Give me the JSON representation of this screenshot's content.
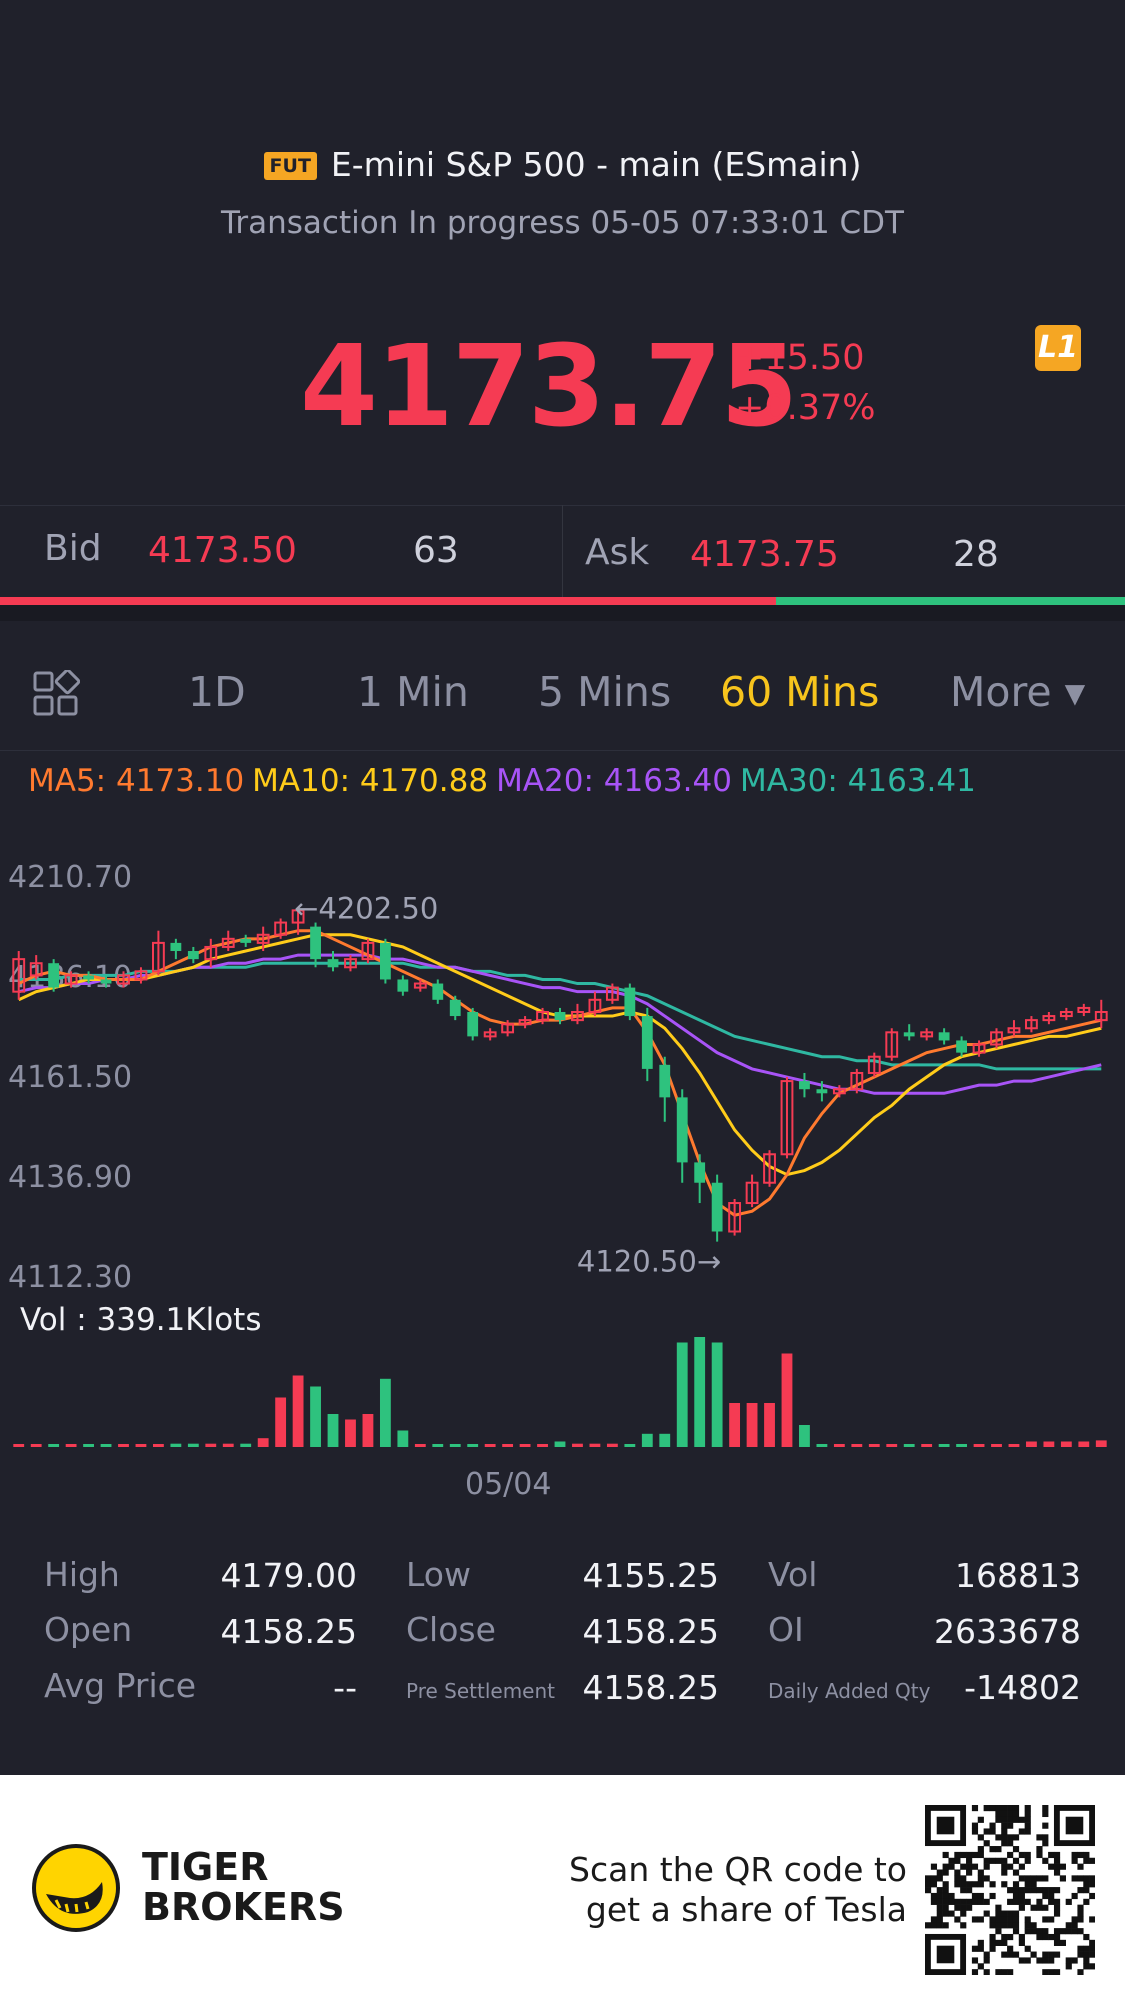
{
  "header": {
    "badge": "FUT",
    "title": "E-mini S&P 500 - main (ESmain)",
    "status": "Transaction In progress 05-05 07:33:01 CDT"
  },
  "quote": {
    "price": "4173.75",
    "change": "+15.50",
    "change_pct": "+0.37%",
    "level_badge": "L1"
  },
  "bidask": {
    "bid_label": "Bid",
    "bid_price": "4173.50",
    "bid_size": "63",
    "ask_label": "Ask",
    "ask_price": "4173.75",
    "ask_size": "28",
    "bid_ratio": 0.69
  },
  "tabs": [
    {
      "label": "1D",
      "active": false
    },
    {
      "label": "1 Min",
      "active": false
    },
    {
      "label": "5 Mins",
      "active": false
    },
    {
      "label": "60 Mins",
      "active": true
    },
    {
      "label": "More ▾",
      "active": false
    }
  ],
  "ma": {
    "ma5": "MA5: 4173.10",
    "ma10": "MA10: 4170.88",
    "ma20": "MA20: 4163.40",
    "ma30": "MA30: 4163.41"
  },
  "chart_data": {
    "type": "candlestick",
    "y_ticks": [
      "4210.70",
      "4186.10",
      "4161.50",
      "4136.90",
      "4112.30"
    ],
    "ylim": [
      4112.3,
      4210.7
    ],
    "high_marker": "←4202.50",
    "low_marker": "4120.50→",
    "vol_label": "Vol  : 339.1Klots",
    "x_label": "05/04",
    "colors": {
      "up": "#f53b53",
      "down": "#2ec27e",
      "ma5": "#ff7a2f",
      "ma10": "#ffcc1a",
      "ma20": "#a854f7",
      "ma30": "#2fb8a2"
    },
    "candles": [
      [
        4182,
        4190,
        4180,
        4192
      ],
      [
        4186,
        4189,
        4185,
        4191
      ],
      [
        4189,
        4183,
        4182,
        4190
      ],
      [
        4184,
        4186,
        4183,
        4187
      ],
      [
        4186,
        4185,
        4184,
        4187
      ],
      [
        4185,
        4184,
        4183,
        4186
      ],
      [
        4184,
        4186,
        4183,
        4187
      ],
      [
        4185,
        4187,
        4184,
        4188
      ],
      [
        4187,
        4194,
        4186,
        4197
      ],
      [
        4194,
        4192,
        4190,
        4195
      ],
      [
        4192,
        4190,
        4189,
        4193
      ],
      [
        4190,
        4193,
        4188,
        4195
      ],
      [
        4193,
        4195,
        4192,
        4197
      ],
      [
        4195,
        4194,
        4193,
        4196
      ],
      [
        4194,
        4196,
        4192,
        4198
      ],
      [
        4196,
        4199,
        4195,
        4200
      ],
      [
        4199,
        4202,
        4196,
        4202.5
      ],
      [
        4198,
        4190,
        4188,
        4199
      ],
      [
        4190,
        4188,
        4187,
        4192
      ],
      [
        4188,
        4190,
        4187,
        4191
      ],
      [
        4190,
        4194,
        4189,
        4195
      ],
      [
        4194,
        4185,
        4184,
        4195
      ],
      [
        4185,
        4182,
        4181,
        4186
      ],
      [
        4183,
        4184,
        4182,
        4185
      ],
      [
        4184,
        4180,
        4179,
        4185
      ],
      [
        4180,
        4176,
        4175,
        4181
      ],
      [
        4177,
        4171,
        4170,
        4178
      ],
      [
        4171,
        4172,
        4170,
        4173
      ],
      [
        4172,
        4174,
        4171,
        4175
      ],
      [
        4174,
        4175,
        4173,
        4176
      ],
      [
        4175,
        4177,
        4174,
        4178
      ],
      [
        4177,
        4175,
        4174,
        4178
      ],
      [
        4175,
        4177,
        4174,
        4179
      ],
      [
        4177,
        4180,
        4176,
        4182
      ],
      [
        4180,
        4183,
        4179,
        4184
      ],
      [
        4183,
        4176,
        4175,
        4184
      ],
      [
        4176,
        4163,
        4160,
        4178
      ],
      [
        4164,
        4156,
        4150,
        4166
      ],
      [
        4156,
        4140,
        4135,
        4158
      ],
      [
        4140,
        4135,
        4130,
        4142
      ],
      [
        4135,
        4123,
        4120.5,
        4137
      ],
      [
        4123,
        4130,
        4122,
        4131
      ],
      [
        4130,
        4135,
        4129,
        4137
      ],
      [
        4135,
        4142,
        4134,
        4143
      ],
      [
        4142,
        4160,
        4141,
        4161
      ],
      [
        4160,
        4158,
        4156,
        4162
      ],
      [
        4158,
        4157,
        4155,
        4160
      ],
      [
        4157,
        4158,
        4156,
        4159
      ],
      [
        4158,
        4162,
        4157,
        4163
      ],
      [
        4162,
        4166,
        4161,
        4167
      ],
      [
        4166,
        4172,
        4165,
        4173
      ],
      [
        4172,
        4171,
        4170,
        4174
      ],
      [
        4171,
        4172,
        4170,
        4173
      ],
      [
        4172,
        4170,
        4169,
        4173
      ],
      [
        4170,
        4167,
        4166,
        4171
      ],
      [
        4167,
        4169,
        4166,
        4170
      ],
      [
        4169,
        4172,
        4168,
        4173
      ],
      [
        4172,
        4173,
        4171,
        4175
      ],
      [
        4173,
        4175,
        4172,
        4176
      ],
      [
        4175,
        4176,
        4174,
        4177
      ],
      [
        4176,
        4177,
        4175,
        4178
      ],
      [
        4177,
        4178,
        4176,
        4179
      ],
      [
        4175,
        4177,
        4173,
        4180
      ]
    ],
    "ma5": [
      4184,
      4186,
      4187,
      4186,
      4186,
      4185,
      4185,
      4185,
      4187,
      4189,
      4191,
      4193,
      4194,
      4195,
      4195,
      4196,
      4197,
      4197,
      4195,
      4193,
      4191,
      4189,
      4187,
      4185,
      4183,
      4180,
      4177,
      4175,
      4174,
      4174,
      4175,
      4175,
      4176,
      4177,
      4178,
      4178,
      4172,
      4164,
      4152,
      4140,
      4130,
      4127,
      4128,
      4131,
      4137,
      4146,
      4152,
      4157,
      4159,
      4161,
      4163,
      4165,
      4167,
      4168,
      4169,
      4169,
      4170,
      4171,
      4171,
      4172,
      4173,
      4174,
      4175
    ],
    "ma10": [
      4180,
      4182,
      4183,
      4184,
      4185,
      4185,
      4185,
      4185,
      4186,
      4187,
      4188,
      4190,
      4191,
      4192,
      4193,
      4194,
      4195,
      4196,
      4196,
      4196,
      4195,
      4194,
      4193,
      4191,
      4189,
      4187,
      4185,
      4183,
      4181,
      4179,
      4177,
      4176,
      4176,
      4176,
      4176,
      4177,
      4176,
      4173,
      4168,
      4162,
      4155,
      4148,
      4143,
      4139,
      4137,
      4138,
      4140,
      4143,
      4147,
      4151,
      4154,
      4158,
      4161,
      4164,
      4166,
      4167,
      4168,
      4169,
      4170,
      4171,
      4171,
      4172,
      4173
    ],
    "ma20": [
      4182,
      4183,
      4183,
      4184,
      4184,
      4185,
      4185,
      4186,
      4186,
      4187,
      4188,
      4188,
      4189,
      4189,
      4190,
      4190,
      4191,
      4191,
      4191,
      4191,
      4191,
      4190,
      4190,
      4189,
      4188,
      4188,
      4187,
      4186,
      4185,
      4184,
      4183,
      4183,
      4182,
      4182,
      4182,
      4181,
      4179,
      4176,
      4173,
      4170,
      4167,
      4165,
      4163,
      4162,
      4161,
      4160,
      4159,
      4158,
      4158,
      4157,
      4157,
      4157,
      4157,
      4157,
      4158,
      4159,
      4159,
      4160,
      4160,
      4161,
      4162,
      4163,
      4164
    ],
    "ma30": [
      4185,
      4185,
      4185,
      4186,
      4186,
      4186,
      4186,
      4187,
      4187,
      4187,
      4188,
      4188,
      4188,
      4188,
      4189,
      4189,
      4189,
      4189,
      4189,
      4189,
      4189,
      4189,
      4189,
      4188,
      4188,
      4188,
      4187,
      4187,
      4186,
      4186,
      4185,
      4185,
      4184,
      4184,
      4183,
      4182,
      4181,
      4179,
      4177,
      4175,
      4173,
      4171,
      4170,
      4169,
      4168,
      4167,
      4166,
      4166,
      4165,
      4165,
      4164,
      4164,
      4164,
      4164,
      4164,
      4164,
      4163,
      4163,
      4163,
      4163,
      4163,
      4163,
      4163
    ],
    "volume": [
      2,
      2,
      2,
      2,
      1,
      1,
      1,
      2,
      2,
      3,
      3,
      3,
      3,
      3,
      8,
      45,
      65,
      55,
      30,
      25,
      30,
      62,
      15,
      1,
      1,
      1,
      1,
      1,
      1,
      1,
      1,
      5,
      3,
      3,
      3,
      1,
      12,
      12,
      95,
      100,
      95,
      40,
      40,
      40,
      85,
      20,
      1,
      1,
      1,
      1,
      1,
      1,
      1,
      1,
      1,
      1,
      2,
      2,
      5,
      5,
      5,
      5,
      6
    ]
  },
  "stats": {
    "high_label": "High",
    "high": "4179.00",
    "open_label": "Open",
    "open": "4158.25",
    "avg_label": "Avg Price",
    "avg": "--",
    "low_label": "Low",
    "low": "4155.25",
    "close_label": "Close",
    "close": "4158.25",
    "presettle_label": "Pre Settlement",
    "presettle": "4158.25",
    "vol_label": "Vol",
    "vol": "168813",
    "oi_label": "OI",
    "oi": "2633678",
    "daily_label": "Daily Added Qty",
    "daily": "-14802"
  },
  "footer": {
    "brand_line1": "TIGER",
    "brand_line2": "BROKERS",
    "promo_line1": "Scan the QR code to",
    "promo_line2": "get a share of Tesla"
  }
}
